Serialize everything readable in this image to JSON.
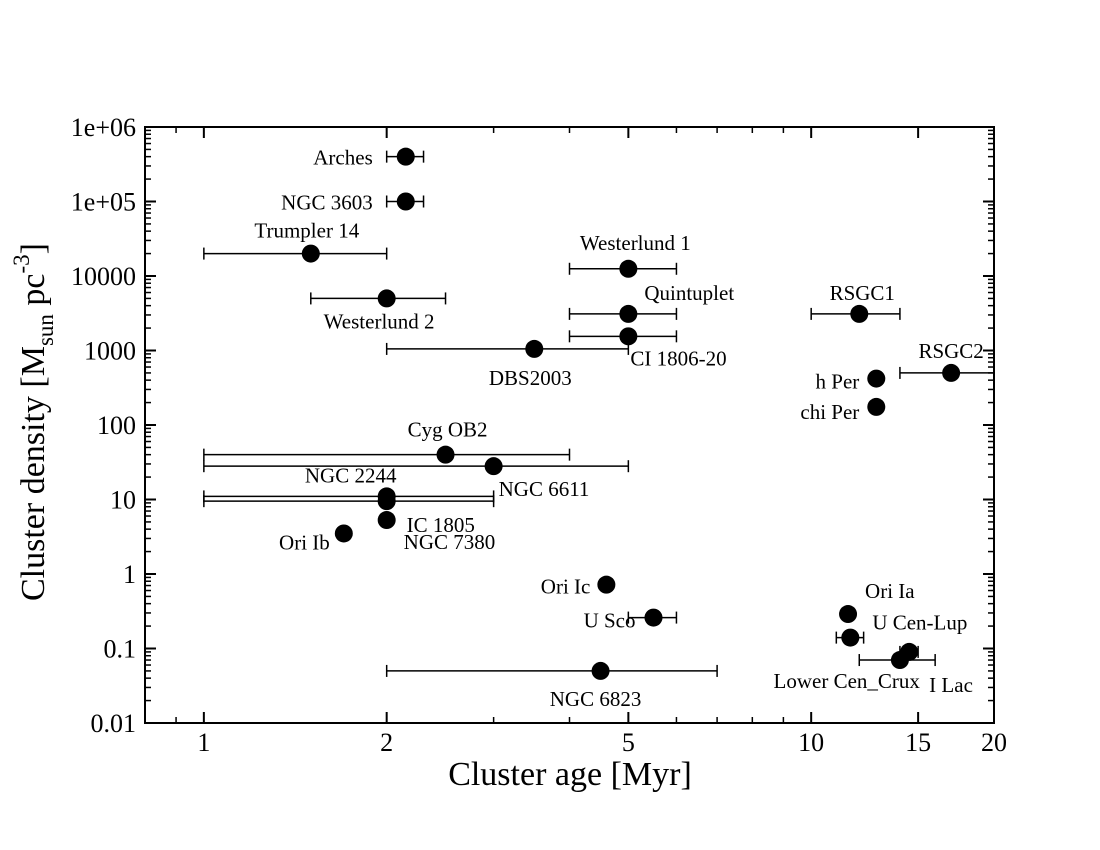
{
  "chart_data": {
    "type": "scatter",
    "title": "",
    "xlabel": "Cluster age [Myr]",
    "ylabel": {
      "main": "Cluster density [M",
      "sub": "sun",
      "mid": " pc",
      "sup": "-3",
      "end": "]"
    },
    "x_scale": "log",
    "y_scale": "log",
    "xlim": [
      0.8,
      20
    ],
    "ylim": [
      0.01,
      1000000
    ],
    "x_ticks": [
      {
        "value": 1,
        "label": "1"
      },
      {
        "value": 2,
        "label": "2"
      },
      {
        "value": 5,
        "label": "5"
      },
      {
        "value": 10,
        "label": "10"
      },
      {
        "value": 15,
        "label": "15"
      },
      {
        "value": 20,
        "label": "20"
      }
    ],
    "y_ticks": [
      {
        "value": 0.01,
        "label": "0.01"
      },
      {
        "value": 0.1,
        "label": "0.1"
      },
      {
        "value": 1,
        "label": "1"
      },
      {
        "value": 10,
        "label": "10"
      },
      {
        "value": 100,
        "label": "100"
      },
      {
        "value": 1000,
        "label": "1000"
      },
      {
        "value": 10000,
        "label": "10000"
      },
      {
        "value": 100000,
        "label": "1e+05"
      },
      {
        "value": 1000000,
        "label": "1e+06"
      }
    ],
    "points": [
      {
        "name": "Arches",
        "age": 2.15,
        "density": 400000,
        "xerr": [
          2.0,
          2.3
        ],
        "anchor": "end"
      },
      {
        "name": "NGC 3603",
        "age": 2.15,
        "density": 100000,
        "xerr": [
          2.0,
          2.3
        ],
        "anchor": "end"
      },
      {
        "name": "Trumpler 14",
        "age": 1.5,
        "density": 20000,
        "xerr": [
          1.0,
          2.0
        ],
        "anchor": "middle"
      },
      {
        "name": "Westerlund 2",
        "age": 2.0,
        "density": 5000,
        "xerr": [
          1.5,
          2.5
        ],
        "anchor": "start"
      },
      {
        "name": "Westerlund 1",
        "age": 5.0,
        "density": 12500,
        "xerr": [
          4.0,
          6.0
        ],
        "anchor": "middle"
      },
      {
        "name": "Quintuplet",
        "age": 5.0,
        "density": 3100,
        "xerr": [
          4.0,
          6.0
        ],
        "anchor": "start"
      },
      {
        "name": "CI 1806-20",
        "age": 5.0,
        "density": 1550,
        "xerr": [
          4.0,
          6.0
        ],
        "anchor": "start"
      },
      {
        "name": "DBS2003",
        "age": 3.5,
        "density": 1050,
        "xerr": [
          2.0,
          5.0
        ],
        "anchor": "middle"
      },
      {
        "name": "RSGC1",
        "age": 12.0,
        "density": 3100,
        "xerr": [
          10.0,
          14.0
        ],
        "anchor": "middle"
      },
      {
        "name": "RSGC2",
        "age": 17.0,
        "density": 500,
        "xerr": [
          14.0,
          20.0
        ],
        "anchor": "middle"
      },
      {
        "name": "h Per",
        "age": 12.8,
        "density": 420,
        "xerr": null,
        "anchor": "end"
      },
      {
        "name": "chi Per",
        "age": 12.8,
        "density": 175,
        "xerr": null,
        "anchor": "end"
      },
      {
        "name": "Cyg OB2",
        "age": 2.5,
        "density": 40,
        "xerr": [
          1.0,
          4.0
        ],
        "anchor": "middle"
      },
      {
        "name": "NGC 6611",
        "age": 3.0,
        "density": 28,
        "xerr": [
          1.0,
          5.0
        ],
        "anchor": "start"
      },
      {
        "name": "NGC 2244",
        "age": 2.0,
        "density": 11,
        "xerr": [
          1.0,
          3.0
        ],
        "anchor": "middle"
      },
      {
        "name": "IC 1805",
        "age": 2.0,
        "density": 9.5,
        "xerr": [
          1.0,
          3.0
        ],
        "anchor": "start"
      },
      {
        "name": "NGC 7380",
        "age": 2.0,
        "density": 5.3,
        "xerr": null,
        "anchor": "start"
      },
      {
        "name": "Ori Ib",
        "age": 1.7,
        "density": 3.5,
        "xerr": null,
        "anchor": "end"
      },
      {
        "name": "Ori Ic",
        "age": 4.6,
        "density": 0.72,
        "xerr": null,
        "anchor": "end"
      },
      {
        "name": "U Sco",
        "age": 5.5,
        "density": 0.26,
        "xerr": [
          5.0,
          6.0
        ],
        "anchor": "end"
      },
      {
        "name": "NGC 6823",
        "age": 4.5,
        "density": 0.05,
        "xerr": [
          2.0,
          7.0
        ],
        "anchor": "middle"
      },
      {
        "name": "Ori Ia",
        "age": 11.5,
        "density": 0.29,
        "xerr": null,
        "anchor": "start"
      },
      {
        "name": "U Cen-Lup",
        "age": 11.6,
        "density": 0.14,
        "xerr": [
          11.0,
          12.2
        ],
        "anchor": "start"
      },
      {
        "name": "Lower Cen_Crux",
        "age": 14.0,
        "density": 0.07,
        "xerr": [
          12.0,
          16.0
        ],
        "anchor": "end"
      },
      {
        "name": "I Lac",
        "age": 14.5,
        "density": 0.09,
        "xerr": [
          14.0,
          15.0
        ],
        "anchor": "start"
      }
    ]
  }
}
